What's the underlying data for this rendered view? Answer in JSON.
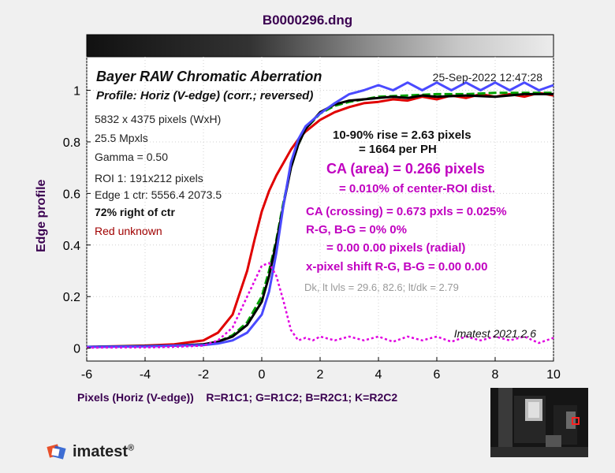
{
  "header": {
    "title": "B0000296.dng"
  },
  "chart_data": {
    "type": "line",
    "title": "Bayer RAW Chromatic Aberration",
    "subtitle": "Profile: Horiz (V-edge) (corr.; reversed)",
    "timestamp": "25-Sep-2022 12:47:28",
    "xlabel": "Pixels (Horiz (V-edge))",
    "channel_legend": "R=R1C1; G=R1C2; B=R2C1; K=R2C2",
    "ylabel": "Edge profile",
    "xlim": [
      -6,
      10
    ],
    "ylim": [
      -0.05,
      1.13
    ],
    "xticks": [
      -6,
      -4,
      -2,
      0,
      2,
      4,
      6,
      8,
      10
    ],
    "yticks": [
      0,
      0.2,
      0.4,
      0.6,
      0.8,
      1
    ],
    "xtick_labels": [
      "-6",
      "-4",
      "-2",
      "0",
      "2",
      "4",
      "6",
      "8",
      "10"
    ],
    "ytick_labels": [
      "0",
      "0.2",
      "0.4",
      "0.6",
      "0.8",
      "1"
    ],
    "info_left": [
      "5832 x 4375 pixels (WxH)",
      "25.5 Mpxls",
      "Gamma = 0.50",
      "ROI 1: 191x212 pixels",
      "Edge 1 ctr: 5556.4  2073.5"
    ],
    "position_note": "72% right of ctr",
    "color_note": "Red unknown",
    "rise_lines": [
      "10-90% rise = 2.63 pixels",
      "= 1664 per PH"
    ],
    "ca_area_lines": [
      "CA (area) = 0.266 pixels",
      "= 0.010% of center-ROI dist."
    ],
    "ca_crossing_lines": [
      "CA (crossing) = 0.673 pxls = 0.025%",
      "R-G, B-G = 0%  0%",
      "= 0.00  0.00 pixels (radial)",
      "x-pixel shift R-G, B-G = 0.00  0.00"
    ],
    "levels_note": "Dk, lt lvls = 29.6, 82.6;  lt/dk = 2.79",
    "version": "Imatest 2021.2.6",
    "series": [
      {
        "color": "#e00000",
        "x": [
          -6,
          -4,
          -3,
          -2,
          -1.5,
          -1,
          -0.5,
          -0.25,
          0,
          0.25,
          0.5,
          0.75,
          1,
          1.25,
          1.5,
          2,
          2.5,
          3,
          3.5,
          4,
          4.5,
          5,
          5.5,
          6,
          6.5,
          7,
          7.5,
          8,
          8.5,
          9,
          9.5,
          10
        ],
        "y": [
          0.005,
          0.01,
          0.015,
          0.03,
          0.06,
          0.13,
          0.3,
          0.42,
          0.53,
          0.61,
          0.67,
          0.72,
          0.77,
          0.81,
          0.84,
          0.885,
          0.915,
          0.935,
          0.95,
          0.955,
          0.965,
          0.96,
          0.975,
          0.965,
          0.98,
          0.97,
          0.985,
          0.975,
          0.985,
          0.975,
          0.99,
          0.98
        ]
      },
      {
        "color": "#00a000",
        "x": [
          -6,
          -4,
          -3,
          -2,
          -1.5,
          -1,
          -0.5,
          0,
          0.25,
          0.5,
          0.75,
          1,
          1.25,
          1.5,
          2,
          2.5,
          3,
          3.5,
          4,
          5,
          6,
          7,
          8,
          9,
          10
        ],
        "y": [
          0.005,
          0.008,
          0.01,
          0.015,
          0.025,
          0.05,
          0.1,
          0.2,
          0.3,
          0.42,
          0.57,
          0.7,
          0.79,
          0.85,
          0.91,
          0.94,
          0.955,
          0.965,
          0.975,
          0.98,
          0.985,
          0.985,
          0.99,
          0.99,
          0.99
        ]
      },
      {
        "color": "#000000",
        "x": [
          -6,
          -4,
          -3,
          -2,
          -1.5,
          -1,
          -0.5,
          0,
          0.25,
          0.5,
          0.75,
          1,
          1.25,
          1.5,
          2,
          2.5,
          3,
          3.5,
          4,
          4.5,
          5,
          5.5,
          6,
          7,
          8,
          9,
          10
        ],
        "y": [
          0.005,
          0.008,
          0.01,
          0.015,
          0.025,
          0.045,
          0.09,
          0.18,
          0.28,
          0.41,
          0.56,
          0.7,
          0.79,
          0.85,
          0.915,
          0.945,
          0.96,
          0.965,
          0.97,
          0.975,
          0.97,
          0.98,
          0.975,
          0.98,
          0.975,
          0.985,
          0.985
        ]
      },
      {
        "color": "#4a4aff",
        "x": [
          -6,
          -4,
          -3,
          -2,
          -1.5,
          -1,
          -0.5,
          0,
          0.25,
          0.5,
          0.75,
          1,
          1.25,
          1.5,
          1.75,
          2,
          2.5,
          3,
          3.5,
          4,
          4.5,
          5,
          5.5,
          6,
          6.5,
          7,
          7.5,
          8,
          8.5,
          9,
          9.5,
          10
        ],
        "y": [
          0.005,
          0.007,
          0.01,
          0.012,
          0.018,
          0.03,
          0.06,
          0.13,
          0.22,
          0.37,
          0.56,
          0.72,
          0.81,
          0.86,
          0.885,
          0.91,
          0.95,
          0.985,
          1.0,
          1.02,
          1.0,
          1.03,
          1.0,
          1.03,
          1.0,
          1.03,
          1.0,
          1.03,
          1.0,
          1.03,
          1.0,
          1.02
        ]
      },
      {
        "color": "#e000e0",
        "dashed": true,
        "x": [
          -6,
          -4,
          -3,
          -2,
          -1.5,
          -1,
          -0.5,
          0,
          0.25,
          0.5,
          0.75,
          1,
          1.25,
          1.5,
          1.75,
          2,
          2.5,
          3,
          3.5,
          4,
          4.5,
          5,
          5.5,
          6,
          6.5,
          7,
          7.5,
          8,
          8.5,
          9,
          9.5,
          10
        ],
        "y": [
          0.002,
          0.003,
          0.005,
          0.01,
          0.03,
          0.08,
          0.2,
          0.32,
          0.33,
          0.28,
          0.18,
          0.07,
          0.03,
          0.04,
          0.03,
          0.045,
          0.03,
          0.045,
          0.03,
          0.045,
          0.025,
          0.045,
          0.03,
          0.045,
          0.025,
          0.045,
          0.03,
          0.045,
          0.03,
          0.045,
          0.02,
          0.04
        ]
      }
    ]
  },
  "logo": {
    "name": "imatest",
    "mark": "®"
  }
}
